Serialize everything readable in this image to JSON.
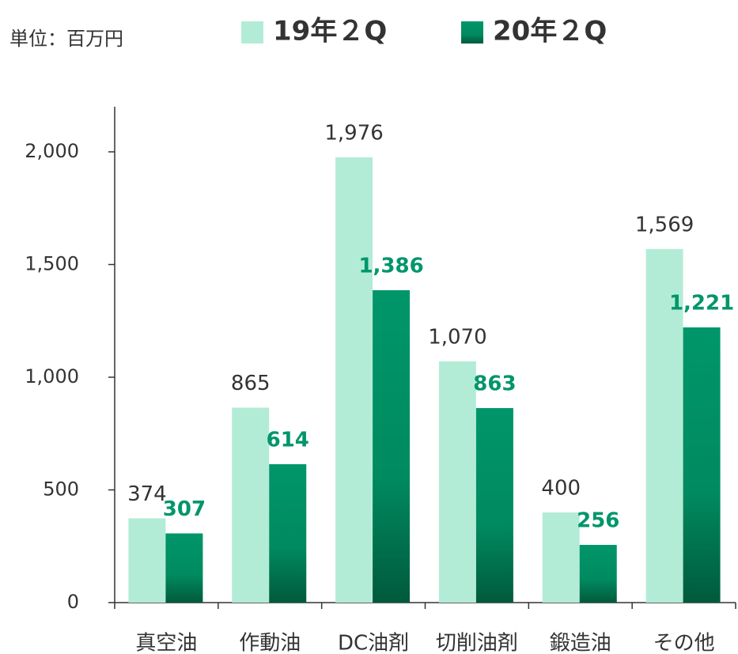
{
  "chart_data": {
    "type": "bar",
    "unit_label": "単位：百万円",
    "categories": [
      "真空油",
      "作動油",
      "DC油剤",
      "切削油剤",
      "鍛造油",
      "その他"
    ],
    "series": [
      {
        "name": "19年２Q",
        "color": "#b3ecd6",
        "values": [
          374,
          865,
          1976,
          1070,
          400,
          1569
        ],
        "value_labels": [
          "374",
          "865",
          "1,976",
          "1,070",
          "400",
          "1,569"
        ]
      },
      {
        "name": "20年２Q",
        "color": "#00966a",
        "values": [
          307,
          614,
          1386,
          863,
          256,
          1221
        ],
        "value_labels": [
          "307",
          "614",
          "1,386",
          "863",
          "256",
          "1,221"
        ]
      }
    ],
    "ylim": [
      0,
      2200
    ],
    "yticks": [
      0,
      500,
      {
        "value": 1000,
        "label": "1,000"
      },
      {
        "value": 1500,
        "label": "1,500"
      },
      {
        "value": 2000,
        "label": "2,000"
      }
    ],
    "legend": "top"
  }
}
